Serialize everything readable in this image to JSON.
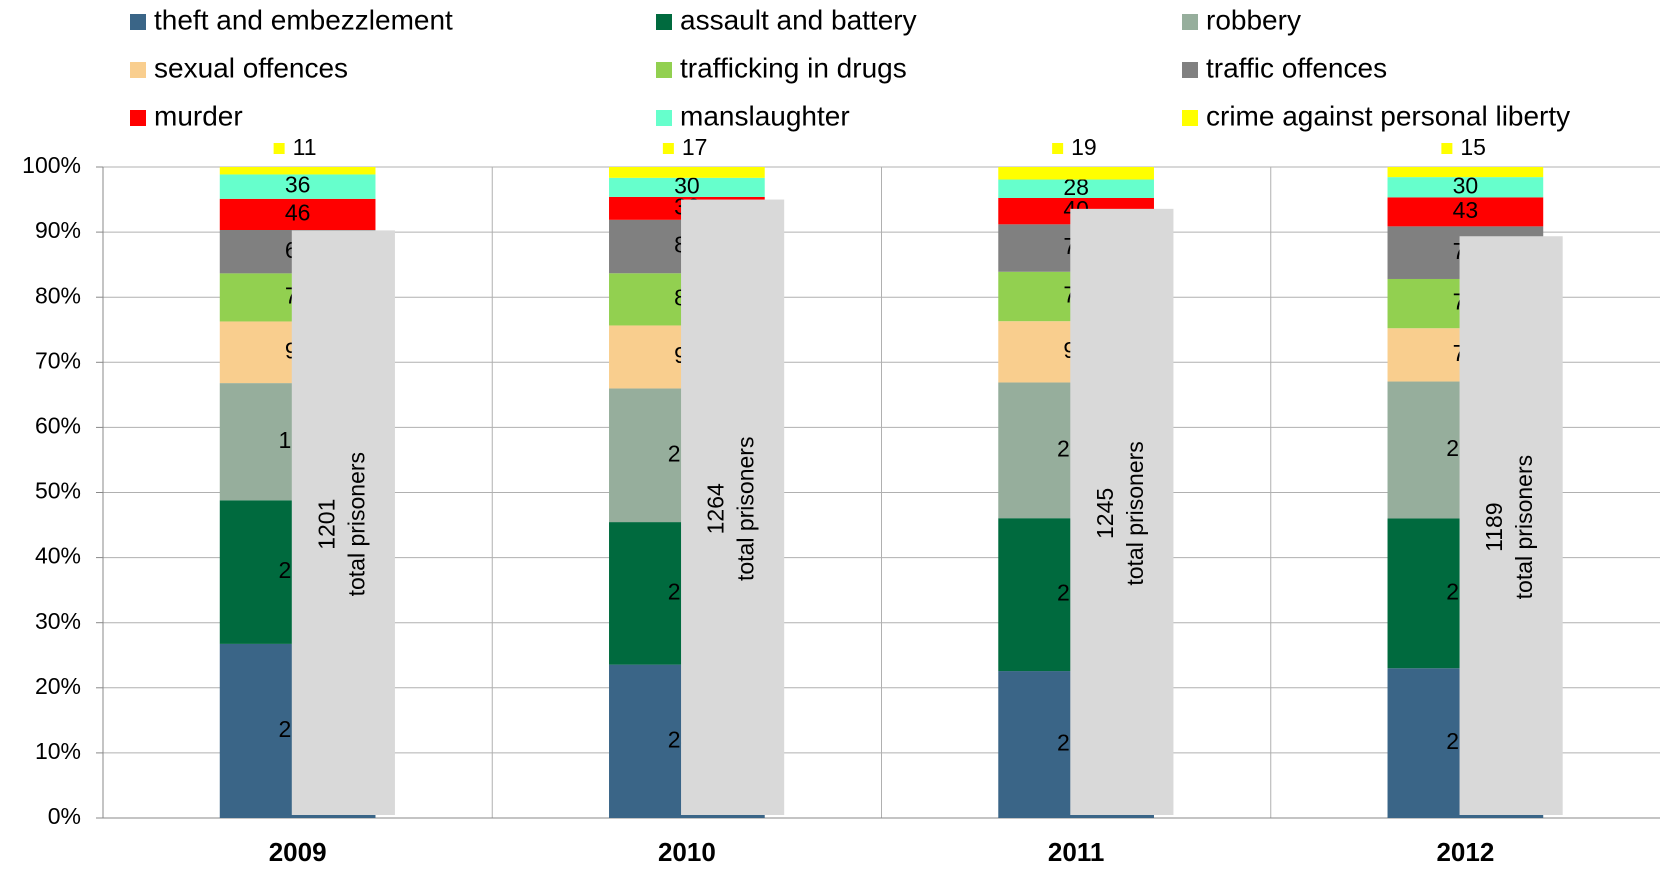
{
  "chart_data": {
    "type": "stacked_bar_100",
    "categories": [
      "2009",
      "2010",
      "2011",
      "2012"
    ],
    "series": [
      {
        "name": "theft and embezzlement",
        "color": "#3a6587",
        "values": [
          257,
          241,
          223,
          222
        ]
      },
      {
        "name": "assault and battery",
        "color": "#006a3e",
        "values": [
          212,
          224,
          232,
          222
        ]
      },
      {
        "name": "robbery",
        "color": "#96ae9c",
        "values": [
          173,
          210,
          206,
          203
        ]
      },
      {
        "name": "sexual offences",
        "color": "#f9ce8e",
        "values": [
          91,
          99,
          93,
          79
        ]
      },
      {
        "name": "trafficking in drugs",
        "color": "#92d050",
        "values": [
          71,
          82,
          75,
          73
        ]
      },
      {
        "name": "traffic offences",
        "color": "#808080",
        "values": [
          64,
          84,
          72,
          78
        ]
      },
      {
        "name": "murder",
        "color": "#ff0000",
        "values": [
          46,
          36,
          40,
          43
        ]
      },
      {
        "name": "manslaughter",
        "color": "#66ffcc",
        "values": [
          36,
          30,
          28,
          30
        ]
      },
      {
        "name": "crime against personal liberty",
        "color": "#ffff00",
        "values": [
          11,
          17,
          19,
          15
        ]
      }
    ],
    "totals": {
      "label": "total prisoners",
      "color": "#d9d9d9",
      "values": [
        1201,
        1264,
        1245,
        1189
      ]
    },
    "ylim": [
      0,
      100
    ],
    "yticks": [
      {
        "value": 0,
        "label": "0%"
      },
      {
        "value": 10,
        "label": "10%"
      },
      {
        "value": 20,
        "label": "20%"
      },
      {
        "value": 30,
        "label": "30%"
      },
      {
        "value": 40,
        "label": "40%"
      },
      {
        "value": 50,
        "label": "50%"
      },
      {
        "value": 60,
        "label": "60%"
      },
      {
        "value": 70,
        "label": "70%"
      },
      {
        "value": 80,
        "label": "80%"
      },
      {
        "value": 90,
        "label": "90%"
      },
      {
        "value": 100,
        "label": "100%"
      }
    ],
    "grid": true,
    "legend": "top"
  }
}
